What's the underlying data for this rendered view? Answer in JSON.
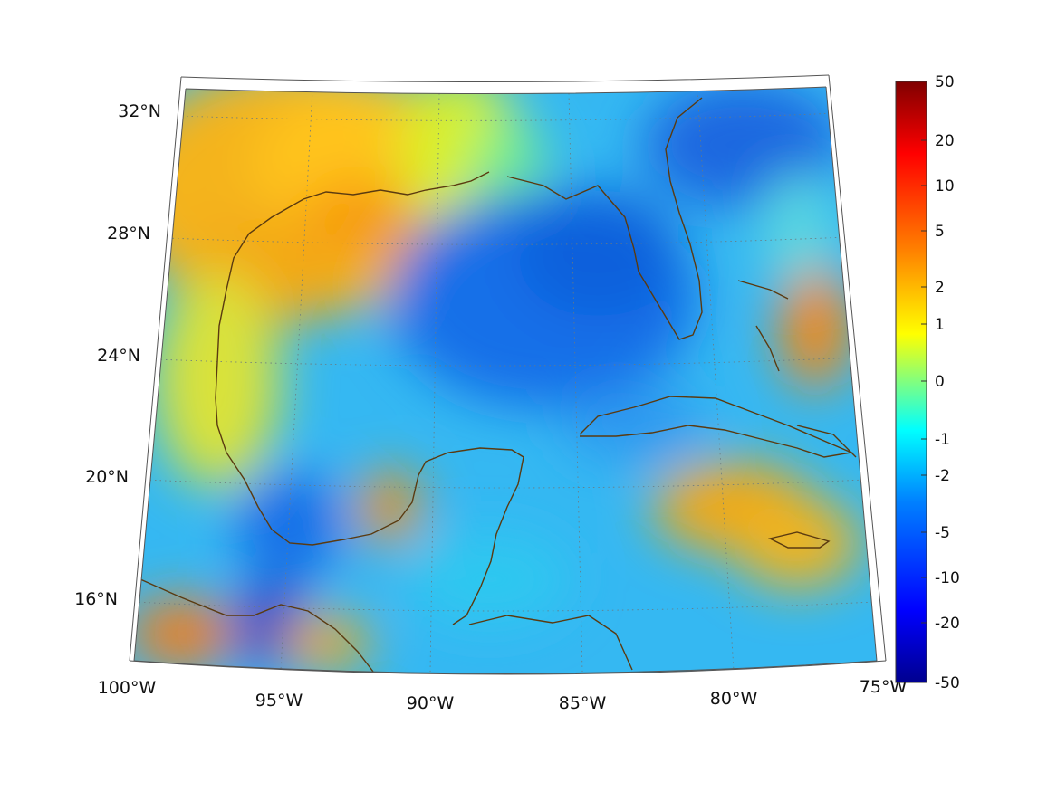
{
  "map": {
    "longitude_labels": [
      "100°W",
      "95°W",
      "90°W",
      "85°W",
      "80°W",
      "75°W"
    ],
    "latitude_labels": [
      "32°N",
      "28°N",
      "24°N",
      "20°N",
      "16°N"
    ],
    "graticule": true
  },
  "colorbar": {
    "tick_labels": [
      "50",
      "20",
      "10",
      "5",
      "2",
      "1",
      "0",
      "-1",
      "-2",
      "-5",
      "-10",
      "-20",
      "-50"
    ],
    "colormap": "jet",
    "colors": [
      "#00008f",
      "#0000ff",
      "#0080ff",
      "#00ffff",
      "#80ff80",
      "#ffff00",
      "#ff8000",
      "#ff0000",
      "#800000"
    ]
  },
  "coastline_color": "#5a3a10",
  "chart_data": {
    "type": "heatmap",
    "title": "",
    "xlabel": "",
    "ylabel": "",
    "xlim": [
      -100,
      -75
    ],
    "ylim": [
      14,
      33
    ],
    "colorbar_ticks": [
      50,
      20,
      10,
      5,
      2,
      1,
      0,
      -1,
      -2,
      -5,
      -10,
      -20,
      -50
    ],
    "colorbar_range": [
      -50,
      50
    ]
  }
}
